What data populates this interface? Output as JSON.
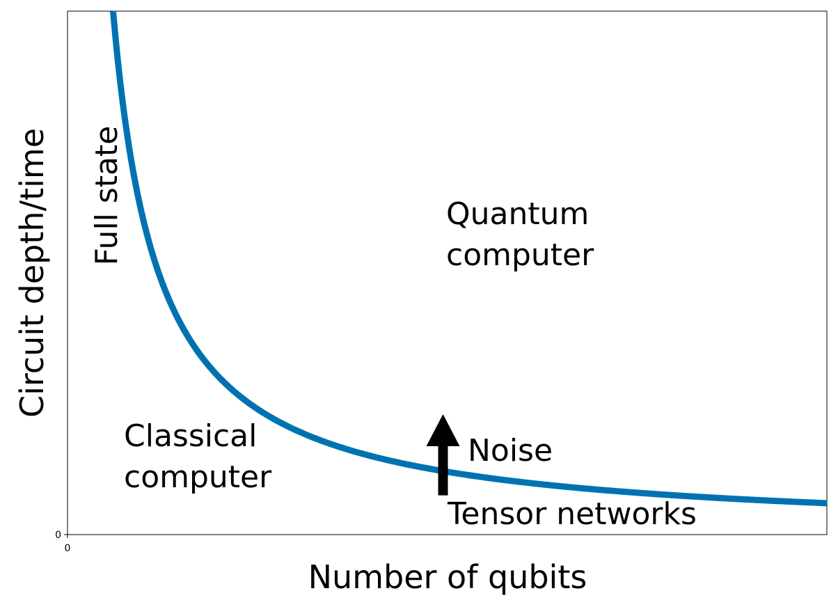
{
  "colors": {
    "curve": "#0072B2",
    "arrow": "#000000",
    "axes": "#000000",
    "background": "#ffffff"
  },
  "chart_data": {
    "type": "line",
    "title": "",
    "xlabel": "Number of qubits",
    "ylabel": "Circuit depth/time",
    "xlim": [
      0,
      1
    ],
    "ylim": [
      0,
      1
    ],
    "grid": false,
    "x_tick_labels": [
      "0"
    ],
    "y_tick_labels": [
      "0"
    ],
    "series": [
      {
        "name": "",
        "note_function": "y = k / x",
        "points": [
          {
            "x": 0.06,
            "y": 1.0
          },
          {
            "x": 0.1,
            "y": 0.6
          },
          {
            "x": 0.15,
            "y": 0.4
          },
          {
            "x": 0.2,
            "y": 0.3
          },
          {
            "x": 0.3,
            "y": 0.2
          },
          {
            "x": 0.4,
            "y": 0.15
          },
          {
            "x": 0.5,
            "y": 0.12
          },
          {
            "x": 0.6,
            "y": 0.1
          },
          {
            "x": 0.8,
            "y": 0.075
          },
          {
            "x": 1.0,
            "y": 0.06
          }
        ]
      }
    ],
    "annotations": {
      "full_state": "Full state",
      "quantum_line1": "Quantum",
      "quantum_line2": "computer",
      "classical_line1": "Classical",
      "classical_line2": "computer",
      "noise": "Noise",
      "tensor": "Tensor networks"
    },
    "arrow": {
      "x": 0.5,
      "y_from": 0.075,
      "y_to": 0.23
    }
  }
}
